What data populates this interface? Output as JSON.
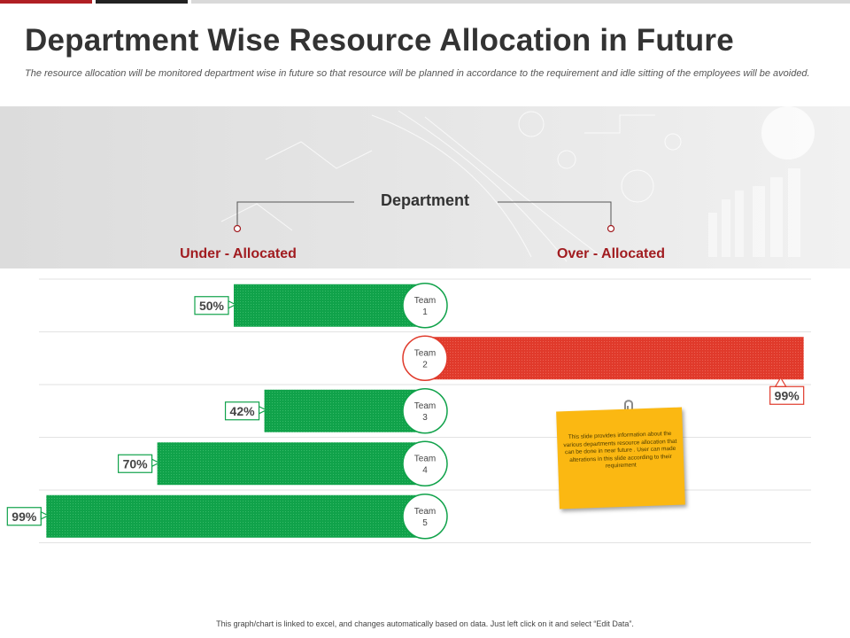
{
  "title": "Department Wise Resource Allocation in Future",
  "subtitle": "The resource allocation will be monitored department wise in future so that resource will be planned  in accordance to the requirement and idle sitting of the employees will be avoided.",
  "department_label": "Department",
  "colors": {
    "under": "#10a24a",
    "over": "#e03a2b",
    "accent": "#a11c20"
  },
  "chart_data": {
    "type": "bar",
    "title": "Department",
    "categories": [
      "Team 1",
      "Team 2",
      "Team 3",
      "Team 4",
      "Team 5"
    ],
    "series": [
      {
        "name": "Under - Allocated",
        "values": [
          50,
          null,
          42,
          70,
          99
        ]
      },
      {
        "name": "Over - Allocated",
        "values": [
          null,
          99,
          null,
          null,
          null
        ]
      }
    ],
    "category_labels": [
      [
        "Team",
        "1"
      ],
      [
        "Team",
        "2"
      ],
      [
        "Team",
        "3"
      ],
      [
        "Team",
        "4"
      ],
      [
        "Team",
        "5"
      ]
    ],
    "value_labels": [
      "50%",
      "99%",
      "42%",
      "70%",
      "99%"
    ],
    "xlim": [
      0,
      100
    ]
  },
  "note": {
    "text": "This slide provides information about the various departments resource allocation  that can be done in near future . User can made alterations in this slide according to their requirement"
  },
  "footer": "This graph/chart is linked to excel, and changes automatically based on data. Just left click on it and select “Edit Data”."
}
